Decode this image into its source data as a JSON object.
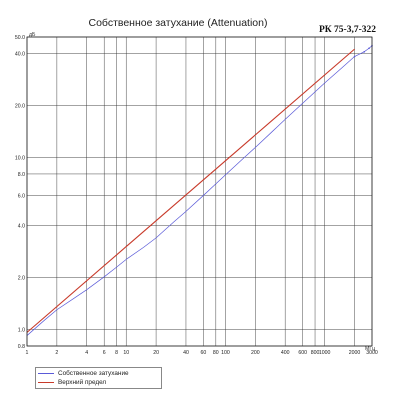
{
  "chart_data": {
    "type": "line",
    "title": "Собственное затухание (Attenuation)",
    "cable_code": "РК 75-3,7-322",
    "ylabel": "дБ",
    "xlabel": "МГц",
    "x_scale": "log",
    "y_scale": "log",
    "xlim": [
      1,
      3000
    ],
    "ylim": [
      0.8,
      50
    ],
    "grid": true,
    "x_ticks": [
      1,
      2,
      4,
      6,
      8,
      10,
      20,
      40,
      60,
      80,
      100,
      200,
      400,
      600,
      800,
      1000,
      2000,
      3000
    ],
    "x_tick_labels": [
      "1",
      "2",
      "4",
      "6",
      "8",
      "10",
      "20",
      "40",
      "60",
      "80",
      "100",
      "200",
      "400",
      "600",
      "800",
      "1000",
      "2000",
      "3000"
    ],
    "y_ticks": [
      0.8,
      1.0,
      2.0,
      4.0,
      6.0,
      8.0,
      10.0,
      20.0,
      40.0,
      50.0
    ],
    "y_tick_labels": [
      "0.8",
      "1.0",
      "2.0",
      "4.0",
      "6.0",
      "8.0",
      "10.0",
      "20.0",
      "40.0",
      "50.0"
    ],
    "legend_position": "bottom-left",
    "series": [
      {
        "name": "Собственное затухание",
        "color": "#5a5ad8",
        "x": [
          1,
          1.5,
          2,
          3,
          4,
          6,
          8,
          10,
          15,
          20,
          30,
          40,
          60,
          80,
          100,
          150,
          200,
          300,
          400,
          600,
          800,
          1000,
          1500,
          2000,
          2500,
          2800,
          3000
        ],
        "y": [
          0.92,
          1.13,
          1.3,
          1.52,
          1.7,
          2.02,
          2.3,
          2.55,
          3.0,
          3.4,
          4.2,
          4.85,
          6.0,
          7.0,
          7.9,
          9.8,
          11.4,
          14.2,
          16.6,
          20.6,
          24.0,
          27.0,
          33.2,
          38.5,
          41.0,
          43.0,
          44.5
        ]
      },
      {
        "name": "Верхний предел",
        "color": "#c83a2a",
        "x": [
          1,
          2000
        ],
        "y": [
          0.96,
          42.5
        ]
      }
    ]
  },
  "legend": {
    "items": [
      {
        "label": "Собственное затухание",
        "color": "#5a5ad8"
      },
      {
        "label": "Верхний предел",
        "color": "#c83a2a"
      }
    ]
  }
}
